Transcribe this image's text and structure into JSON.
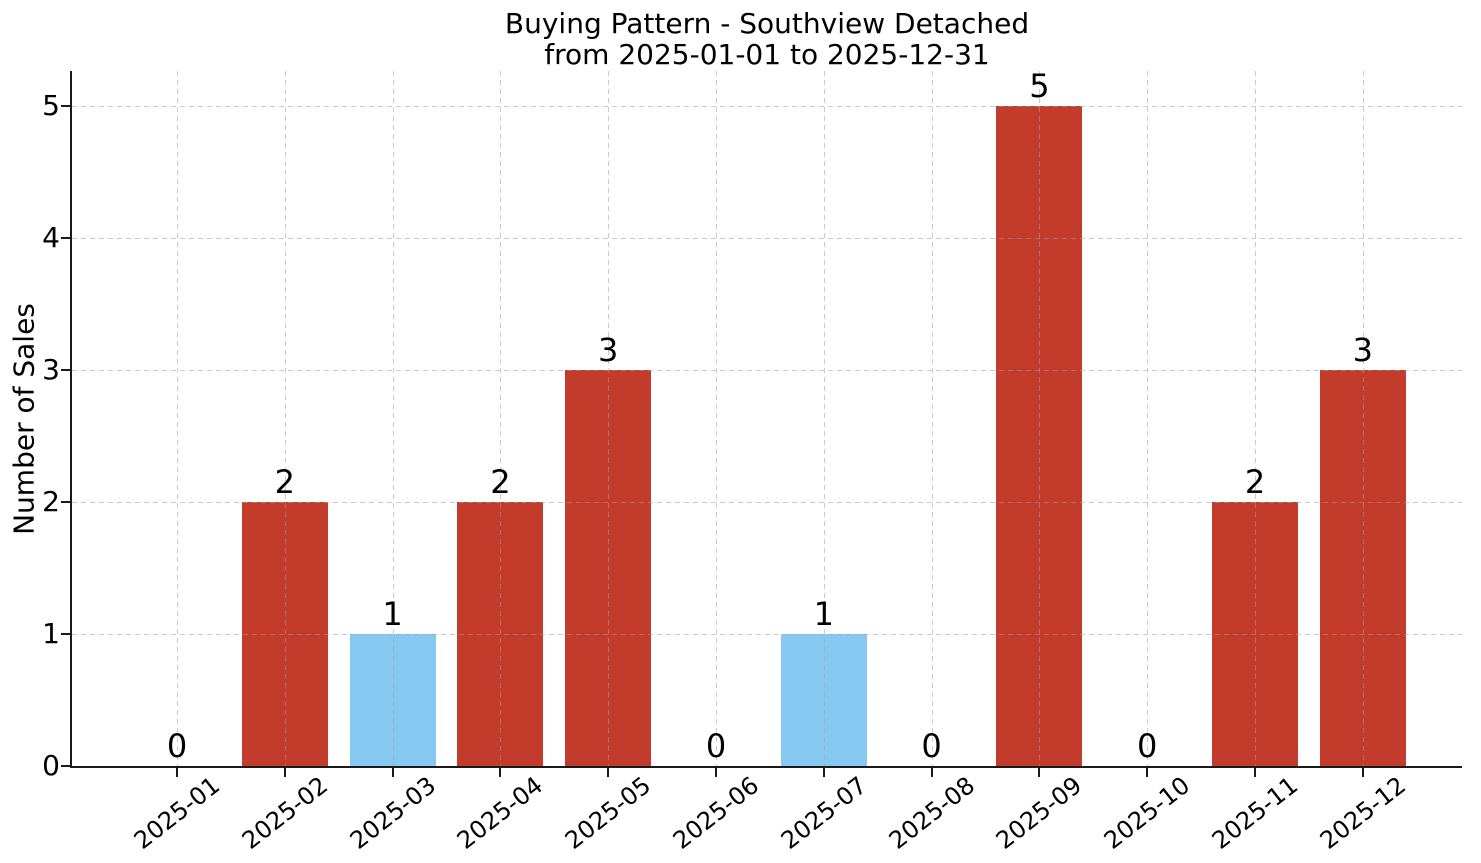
{
  "title": {
    "line1": "Buying Pattern - Southview Detached",
    "line2": "from 2025-01-01 to 2025-12-31"
  },
  "chart_data": {
    "type": "bar",
    "title": "Buying Pattern - Southview Detached\nfrom 2025-01-01 to 2025-12-31",
    "xlabel": "",
    "ylabel": "Number of Sales",
    "categories": [
      "2025-01",
      "2025-02",
      "2025-03",
      "2025-04",
      "2025-05",
      "2025-06",
      "2025-07",
      "2025-08",
      "2025-09",
      "2025-10",
      "2025-11",
      "2025-12"
    ],
    "values": [
      0,
      2,
      1,
      2,
      3,
      0,
      1,
      0,
      5,
      0,
      2,
      3
    ],
    "value_labels": [
      "0",
      "2",
      "1",
      "2",
      "3",
      "0",
      "1",
      "0",
      "5",
      "0",
      "2",
      "3"
    ],
    "bar_colors": [
      "#c33b2b",
      "#c33b2b",
      "#85c9f1",
      "#c33b2b",
      "#c33b2b",
      "#c33b2b",
      "#85c9f1",
      "#c33b2b",
      "#c33b2b",
      "#c33b2b",
      "#c33b2b",
      "#c33b2b"
    ],
    "yticks": [
      0,
      1,
      2,
      3,
      4,
      5
    ],
    "ylim": [
      0,
      5.25
    ],
    "xtick_rotation": 45,
    "grid": true,
    "grid_style": "dashed",
    "legend": null,
    "colors": {
      "bar_default": "#c33b2b",
      "bar_highlight": "#85c9f1",
      "grid": "#dcdcdc",
      "axis": "#1a1a1a",
      "text": "#000000",
      "background": "#ffffff"
    }
  }
}
